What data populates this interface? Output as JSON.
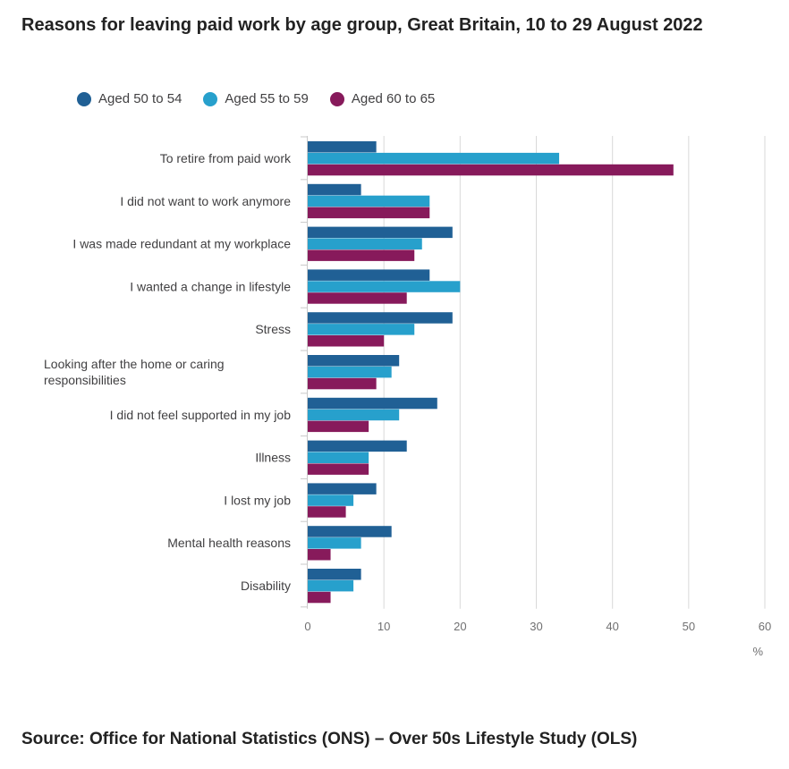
{
  "title": "Reasons for leaving paid work by age group, Great Britain, 10 to 29 August 2022",
  "source": "Source: Office for National Statistics (ONS) – Over 50s Lifestyle Study (OLS)",
  "chart_data": {
    "type": "bar",
    "orientation": "horizontal",
    "title": "Reasons for leaving paid work by age group, Great Britain, 10 to 29 August 2022",
    "xlabel": "%",
    "xlim": [
      0,
      60
    ],
    "ticks": [
      0,
      10,
      20,
      30,
      40,
      50,
      60
    ],
    "grid": true,
    "legend_position": "top-left",
    "categories": [
      "To retire from paid work",
      "I did not want to work anymore",
      "I was made redundant at my workplace",
      "I wanted a change in lifestyle",
      "Stress",
      "Looking after the home or caring responsibilities",
      "I did not feel supported in my job",
      "Illness",
      "I lost my job",
      "Mental health reasons",
      "Disability"
    ],
    "series": [
      {
        "name": "Aged 50 to 54",
        "color": "#206095",
        "values": [
          9,
          7,
          19,
          16,
          19,
          12,
          17,
          13,
          9,
          11,
          7
        ]
      },
      {
        "name": "Aged 55 to 59",
        "color": "#27a0cc",
        "values": [
          33,
          16,
          15,
          20,
          14,
          11,
          12,
          8,
          6,
          7,
          6
        ]
      },
      {
        "name": "Aged 60 to 65",
        "color": "#871a5b",
        "values": [
          48,
          16,
          14,
          13,
          10,
          9,
          8,
          8,
          5,
          3,
          3
        ]
      }
    ]
  }
}
